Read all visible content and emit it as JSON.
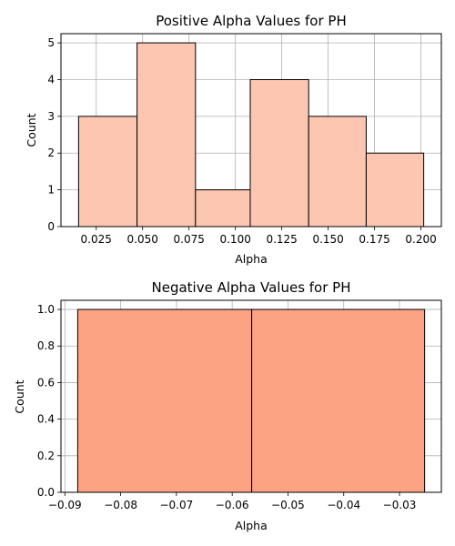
{
  "chart_data": [
    {
      "type": "bar",
      "title": "Positive Alpha Values for PH",
      "xlabel": "Alpha",
      "ylabel": "Count",
      "bin_edges": [
        0.0155,
        0.047,
        0.0785,
        0.108,
        0.1395,
        0.1705,
        0.2015
      ],
      "values": [
        3,
        5,
        1,
        4,
        3,
        2
      ],
      "xlim": [
        0.006,
        0.211
      ],
      "ylim": [
        0,
        5.25
      ],
      "xticks": [
        0.025,
        0.05,
        0.075,
        0.1,
        0.125,
        0.15,
        0.175,
        0.2
      ],
      "xtick_labels": [
        "0.025",
        "0.050",
        "0.075",
        "0.100",
        "0.125",
        "0.150",
        "0.175",
        "0.200"
      ],
      "yticks": [
        0,
        1,
        2,
        3,
        4,
        5
      ],
      "ytick_labels": [
        "0",
        "1",
        "2",
        "3",
        "4",
        "5"
      ],
      "bar_color": "#fcc6b0",
      "grid": true
    },
    {
      "type": "bar",
      "title": "Negative Alpha Values for PH",
      "xlabel": "Alpha",
      "ylabel": "Count",
      "bin_edges": [
        -0.0877,
        -0.0565,
        -0.0255
      ],
      "values": [
        1,
        1
      ],
      "xlim": [
        -0.0907,
        -0.0225
      ],
      "ylim": [
        0,
        1.05
      ],
      "xticks": [
        -0.09,
        -0.08,
        -0.07,
        -0.06,
        -0.05,
        -0.04,
        -0.03
      ],
      "xtick_labels": [
        "−0.09",
        "−0.08",
        "−0.07",
        "−0.06",
        "−0.05",
        "−0.04",
        "−0.03"
      ],
      "yticks": [
        0,
        0.2,
        0.4,
        0.6,
        0.8,
        1.0
      ],
      "ytick_labels": [
        "0.0",
        "0.2",
        "0.4",
        "0.6",
        "0.8",
        "1.0"
      ],
      "bar_color": "#fca384",
      "grid": true
    }
  ]
}
